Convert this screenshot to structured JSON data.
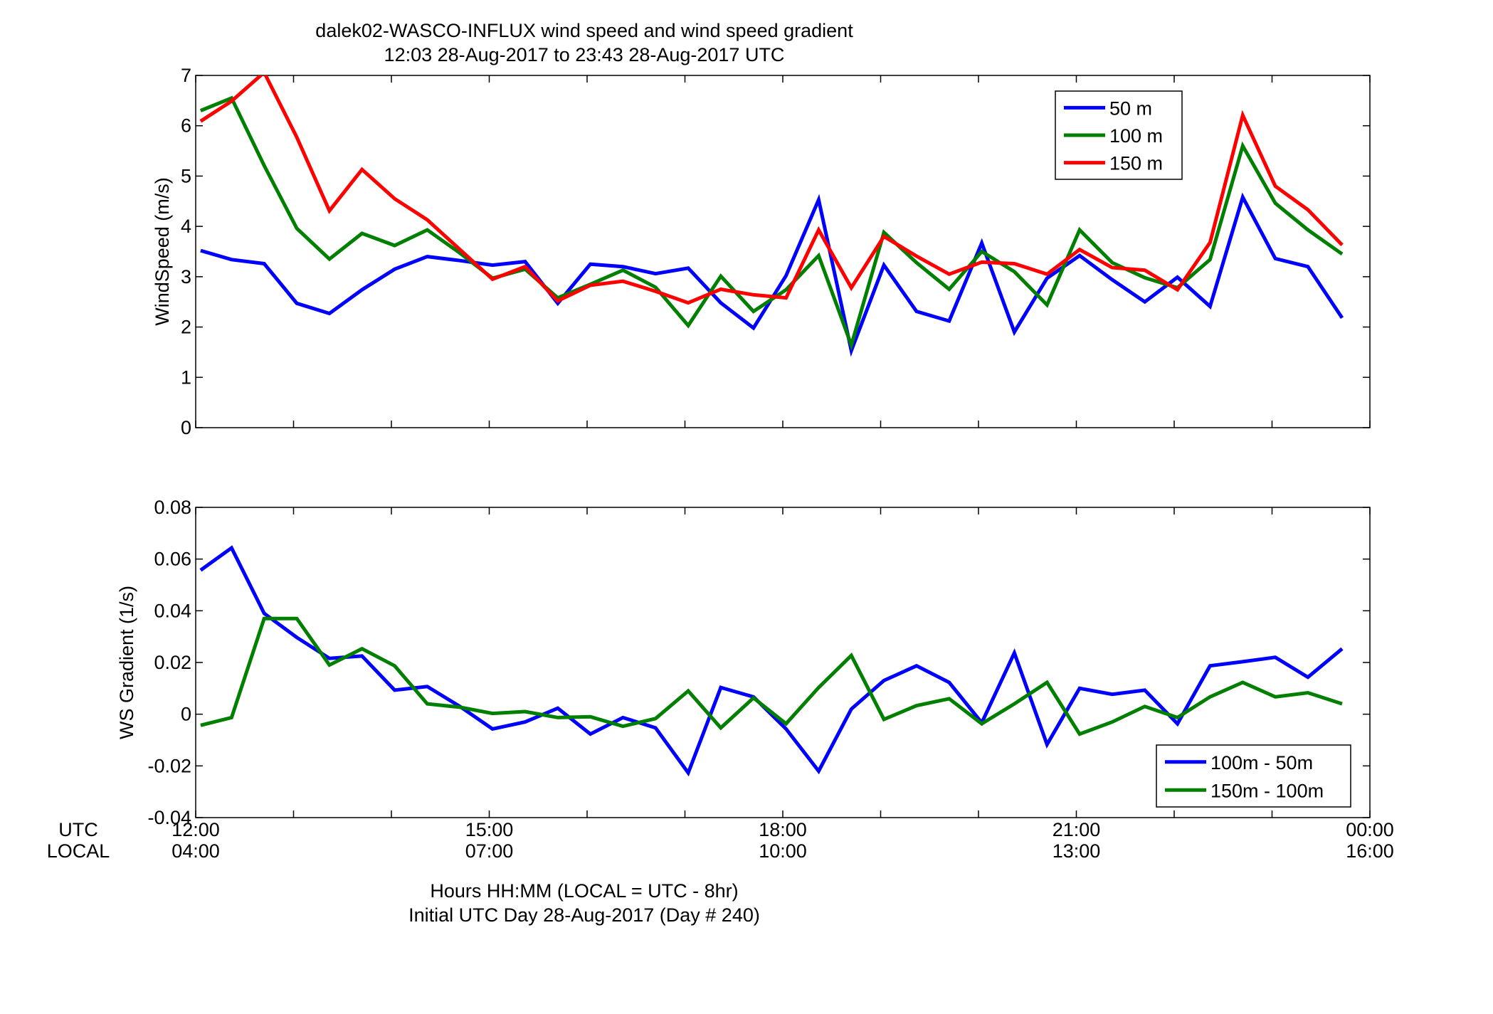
{
  "figure": {
    "title_line1": "dalek02-WASCO-INFLUX  wind speed and wind speed gradient",
    "title_line2": "12:03 28-Aug-2017 to 23:43 28-Aug-2017  UTC",
    "xaxis_row_labels": [
      "UTC",
      "LOCAL"
    ],
    "xaxis_utc_ticks": [
      "12:00",
      "15:00",
      "18:00",
      "21:00",
      "00:00"
    ],
    "xaxis_local_ticks": [
      "04:00",
      "07:00",
      "10:00",
      "13:00",
      "16:00"
    ],
    "xlabel_line1": "Hours HH:MM  (LOCAL = UTC - 8hr)",
    "xlabel_line2": "Initial UTC Day 28-Aug-2017 (Day # 240)"
  },
  "chart_data": [
    {
      "type": "line",
      "title": "",
      "xlabel": "",
      "ylabel": "WindSpeed (m/s)",
      "xlim": [
        12.0,
        24.0
      ],
      "ylim": [
        0,
        7
      ],
      "yticks": [
        0,
        1,
        2,
        3,
        4,
        5,
        6,
        7
      ],
      "ytick_labels": [
        "0",
        "1",
        "2",
        "3",
        "4",
        "5",
        "6",
        "7"
      ],
      "grid": false,
      "legend_position": "top-right",
      "x": [
        12.05,
        12.3667,
        12.7,
        13.0333,
        13.3667,
        13.7,
        14.0333,
        14.3667,
        14.7,
        15.0333,
        15.3667,
        15.7,
        16.0333,
        16.3667,
        16.7,
        17.0333,
        17.3667,
        17.7,
        18.0333,
        18.3667,
        18.7,
        19.0333,
        19.3667,
        19.7,
        20.0333,
        20.3667,
        20.7,
        21.0333,
        21.3667,
        21.7,
        22.0333,
        22.3667,
        22.7,
        23.0333,
        23.3667,
        23.7167
      ],
      "series": [
        {
          "name": "50 m",
          "color": "#0000ff",
          "values": [
            3.52,
            3.34,
            3.26,
            2.47,
            2.27,
            2.74,
            3.15,
            3.4,
            3.32,
            3.23,
            3.3,
            2.47,
            3.25,
            3.2,
            3.06,
            3.17,
            2.48,
            1.98,
            3.02,
            4.53,
            1.53,
            3.23,
            2.31,
            2.12,
            3.67,
            1.9,
            2.97,
            3.42,
            2.94,
            2.5,
            2.99,
            2.41,
            4.58,
            3.36,
            3.2,
            2.18
          ]
        },
        {
          "name": "100 m",
          "color": "#007f00",
          "values": [
            6.3,
            6.55,
            5.21,
            3.96,
            3.35,
            3.86,
            3.62,
            3.93,
            3.47,
            2.97,
            3.15,
            2.58,
            2.85,
            3.13,
            2.79,
            2.03,
            3.01,
            2.31,
            2.74,
            3.42,
            1.64,
            3.88,
            3.28,
            2.75,
            3.5,
            3.1,
            2.44,
            3.93,
            3.28,
            2.98,
            2.78,
            3.34,
            5.6,
            4.46,
            3.93,
            3.45
          ]
        },
        {
          "name": "150 m",
          "color": "#ff0000",
          "values": [
            6.09,
            6.49,
            7.06,
            5.77,
            4.31,
            5.13,
            4.55,
            4.13,
            3.54,
            2.95,
            3.2,
            2.52,
            2.83,
            2.91,
            2.71,
            2.48,
            2.75,
            2.64,
            2.58,
            3.93,
            2.78,
            3.8,
            3.41,
            3.05,
            3.29,
            3.26,
            3.05,
            3.54,
            3.18,
            3.13,
            2.74,
            3.68,
            6.21,
            4.8,
            4.33,
            3.63
          ]
        }
      ]
    },
    {
      "type": "line",
      "title": "",
      "xlabel": "",
      "ylabel": "WS Gradient (1/s)",
      "xlim": [
        12.0,
        24.0
      ],
      "ylim": [
        -0.04,
        0.08
      ],
      "yticks": [
        -0.04,
        -0.02,
        0,
        0.02,
        0.04,
        0.06,
        0.08
      ],
      "ytick_labels": [
        "-0.04",
        "-0.02",
        "0",
        "0.02",
        "0.04",
        "0.06",
        "0.08"
      ],
      "grid": false,
      "legend_position": "bottom-right",
      "x": [
        12.05,
        12.3667,
        12.7,
        13.0333,
        13.3667,
        13.7,
        14.0333,
        14.3667,
        14.7,
        15.0333,
        15.3667,
        15.7,
        16.0333,
        16.3667,
        16.7,
        17.0333,
        17.3667,
        17.7,
        18.0333,
        18.3667,
        18.7,
        19.0333,
        19.3667,
        19.7,
        20.0333,
        20.3667,
        20.7,
        21.0333,
        21.3667,
        21.7,
        22.0333,
        22.3667,
        22.7,
        23.0333,
        23.3667,
        23.7167
      ],
      "series": [
        {
          "name": "100m - 50m",
          "color": "#0000ff",
          "values": [
            0.0557,
            0.0643,
            0.039,
            0.0297,
            0.0216,
            0.0225,
            0.0093,
            0.0107,
            0.003,
            -0.0057,
            -0.003,
            0.0023,
            -0.0077,
            -0.0013,
            -0.0053,
            -0.0227,
            0.0103,
            0.0067,
            -0.0057,
            -0.022,
            0.002,
            0.013,
            0.0187,
            0.0123,
            -0.0033,
            0.0237,
            -0.0117,
            0.01,
            0.0077,
            0.0093,
            -0.0037,
            0.0187,
            0.0203,
            0.022,
            0.0143,
            0.0253
          ]
        },
        {
          "name": "150m - 100m",
          "color": "#007f00",
          "values": [
            -0.0043,
            -0.0013,
            0.037,
            0.037,
            0.019,
            0.0253,
            0.0187,
            0.004,
            0.0027,
            0.0003,
            0.001,
            -0.0013,
            -0.001,
            -0.0047,
            -0.0017,
            0.009,
            -0.0053,
            0.0063,
            -0.0037,
            0.0103,
            0.0227,
            -0.002,
            0.0033,
            0.006,
            -0.0037,
            0.004,
            0.0123,
            -0.0077,
            -0.003,
            0.003,
            -0.0013,
            0.0067,
            0.0123,
            0.0067,
            0.0083,
            0.004
          ]
        }
      ]
    }
  ]
}
